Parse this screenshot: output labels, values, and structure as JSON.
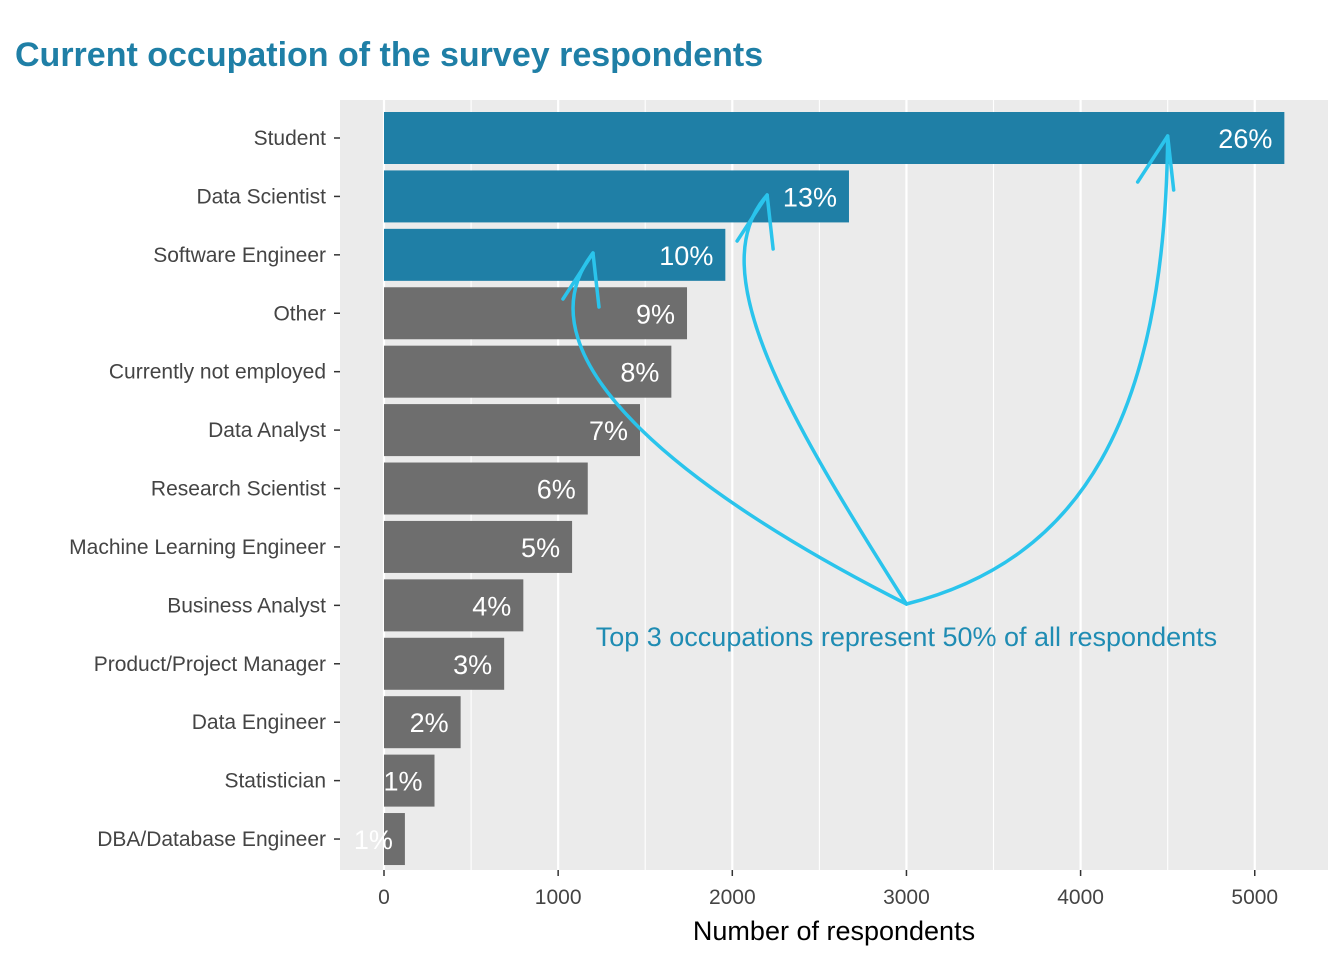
{
  "chart_data": {
    "type": "bar",
    "orientation": "horizontal",
    "title": "Current occupation of the survey respondents",
    "xlabel": "Number of respondents",
    "ylabel": "",
    "xlim": [
      -250,
      5400
    ],
    "xticks": [
      0,
      1000,
      2000,
      3000,
      4000,
      5000
    ],
    "categories": [
      "Student",
      "Data Scientist",
      "Software Engineer",
      "Other",
      "Currently not employed",
      "Data Analyst",
      "Research Scientist",
      "Machine Learning Engineer",
      "Business Analyst",
      "Product/Project Manager",
      "Data Engineer",
      "Statistician",
      "DBA/Database Engineer"
    ],
    "values": [
      5170,
      2670,
      1960,
      1740,
      1650,
      1470,
      1170,
      1080,
      800,
      690,
      440,
      290,
      120
    ],
    "labels": [
      "26%",
      "13%",
      "10%",
      "9%",
      "8%",
      "7%",
      "6%",
      "5%",
      "4%",
      "3%",
      "2%",
      "1%",
      "1%"
    ],
    "highlight_count": 3,
    "colors": {
      "highlight": "#1f7fa6",
      "default": "#6e6e6e",
      "panel": "#ebebeb",
      "arrow": "#2ac4ec",
      "annotation": "#1f8cb3"
    },
    "grid": true,
    "annotation": {
      "text": "Top 3 occupations represent 50% of all respondents",
      "x": 3000,
      "arrow_origin": 3000,
      "arrow_targets": [
        1200,
        2200,
        4500
      ]
    }
  }
}
